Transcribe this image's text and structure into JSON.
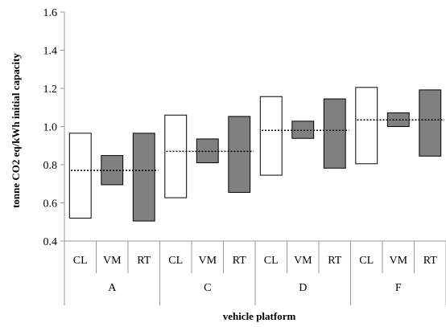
{
  "chart_data": {
    "type": "floating-bar",
    "title": "",
    "xlabel": "vehicle platform",
    "ylabel": "tonne CO2 eq/kWh initial capacity",
    "ylim": [
      0.4,
      1.6
    ],
    "yticks": [
      "0.4",
      "0.6",
      "0.8",
      "1.0",
      "1.2",
      "1.4",
      "1.6"
    ],
    "grid": false,
    "legend": "none",
    "colors": {
      "CL": "#ffffff",
      "VM": "#808080",
      "RT": "#808080",
      "outline": "#000000",
      "axis": "#999999"
    },
    "groups": [
      {
        "label": "A",
        "mean": 0.77,
        "bars": [
          {
            "category": "CL",
            "low": 0.52,
            "high": 0.965
          },
          {
            "category": "VM",
            "low": 0.695,
            "high": 0.848
          },
          {
            "category": "RT",
            "low": 0.505,
            "high": 0.965
          }
        ]
      },
      {
        "label": "C",
        "mean": 0.87,
        "bars": [
          {
            "category": "CL",
            "low": 0.627,
            "high": 1.06
          },
          {
            "category": "VM",
            "low": 0.81,
            "high": 0.935
          },
          {
            "category": "RT",
            "low": 0.655,
            "high": 1.053
          }
        ]
      },
      {
        "label": "D",
        "mean": 0.98,
        "bars": [
          {
            "category": "CL",
            "low": 0.745,
            "high": 1.157
          },
          {
            "category": "VM",
            "low": 0.938,
            "high": 1.028
          },
          {
            "category": "RT",
            "low": 0.782,
            "high": 1.145
          }
        ]
      },
      {
        "label": "F",
        "mean": 1.035,
        "bars": [
          {
            "category": "CL",
            "low": 0.805,
            "high": 1.205
          },
          {
            "category": "VM",
            "low": 1.0,
            "high": 1.072
          },
          {
            "category": "RT",
            "low": 0.845,
            "high": 1.192
          }
        ]
      }
    ]
  }
}
